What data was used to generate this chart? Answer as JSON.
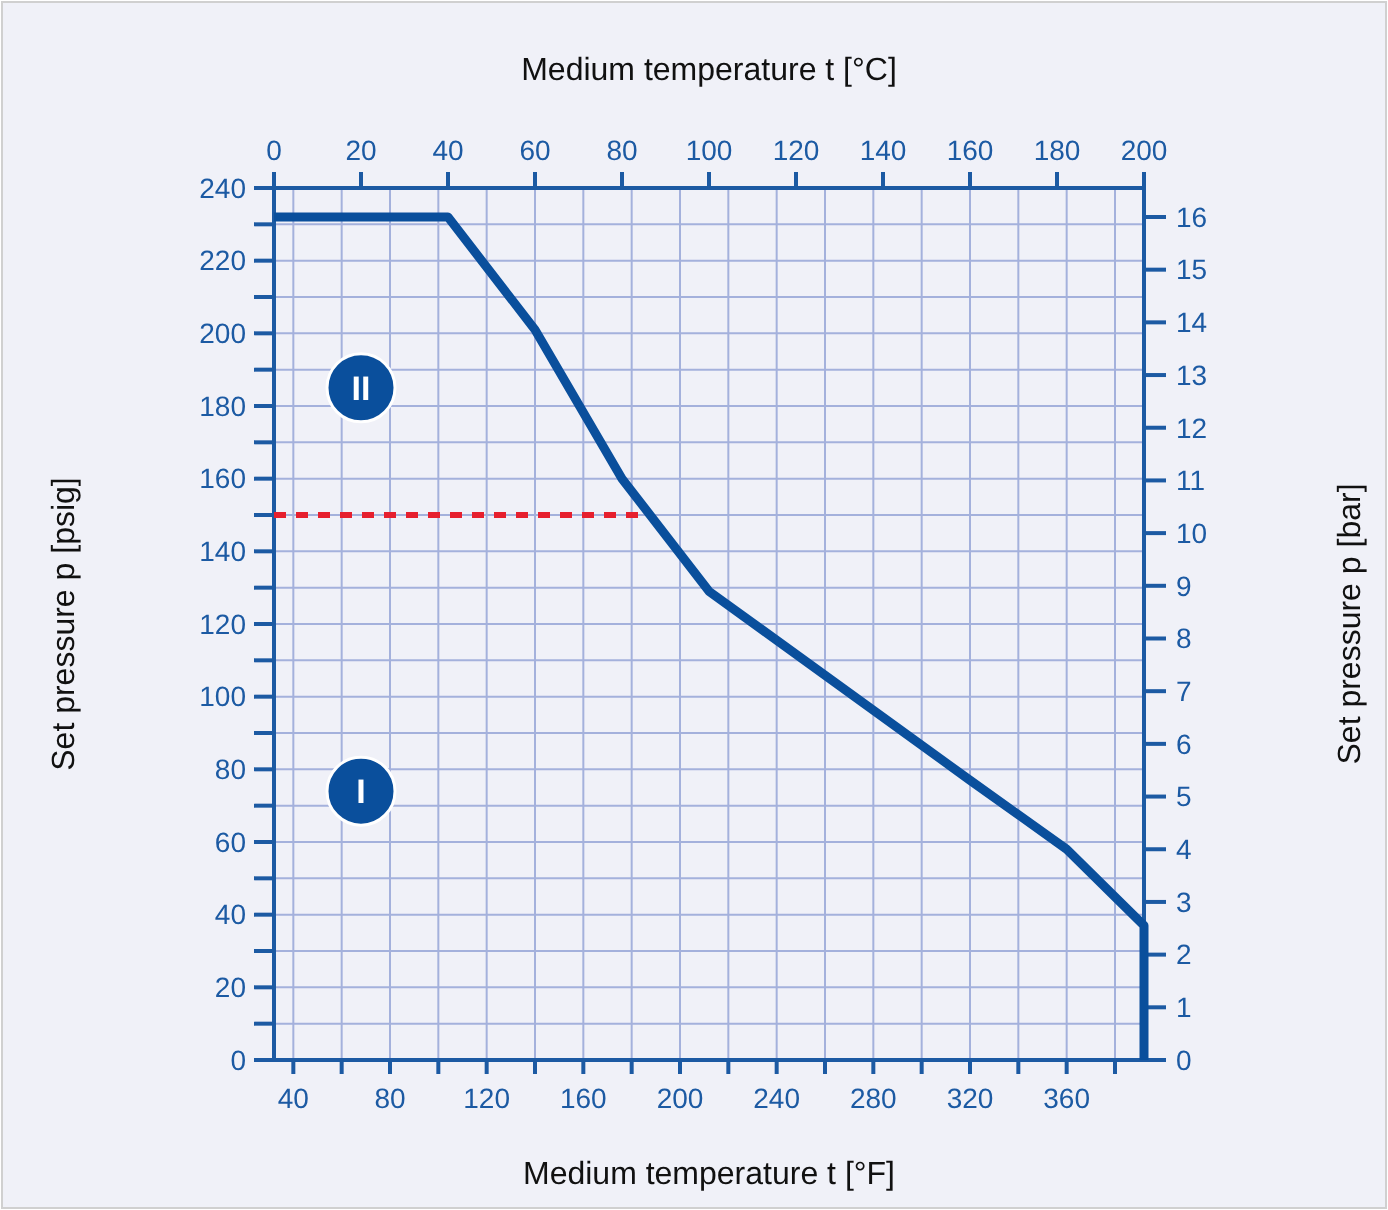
{
  "chart_data": {
    "type": "line",
    "xlabel": "Medium temperature t [°F]",
    "x2label": "Medium temperature t [°C]",
    "ylabel": "Set pressure p [psig]",
    "y2label": "Set pressure p [bar]",
    "xlim": [
      32,
      392
    ],
    "xticks": [
      40,
      {
        "value": 60,
        "label": null
      },
      80,
      {
        "value": 100,
        "label": null
      },
      120,
      {
        "value": 140,
        "label": null
      },
      160,
      {
        "value": 180,
        "label": null
      },
      200,
      {
        "value": 220,
        "label": null
      },
      240,
      {
        "value": 260,
        "label": null
      },
      280,
      {
        "value": 300,
        "label": null
      },
      320,
      {
        "value": 340,
        "label": null
      },
      360,
      {
        "value": 380,
        "label": null
      }
    ],
    "x2lim": [
      0,
      200
    ],
    "x2ticks": [
      0,
      20,
      40,
      60,
      80,
      100,
      120,
      140,
      160,
      180,
      200
    ],
    "ylim": [
      0,
      240
    ],
    "yticks": [
      0,
      {
        "value": 10,
        "label": null
      },
      20,
      {
        "value": 30,
        "label": null
      },
      40,
      {
        "value": 50,
        "label": null
      },
      60,
      {
        "value": 70,
        "label": null
      },
      80,
      {
        "value": 90,
        "label": null
      },
      100,
      {
        "value": 110,
        "label": null
      },
      120,
      {
        "value": 130,
        "label": null
      },
      140,
      {
        "value": 150,
        "label": null
      },
      160,
      {
        "value": 170,
        "label": null
      },
      180,
      {
        "value": 190,
        "label": null
      },
      200,
      {
        "value": 210,
        "label": null
      },
      220,
      {
        "value": 230,
        "label": null
      },
      240
    ],
    "y2lim": [
      0,
      16.55
    ],
    "y2ticks": [
      0,
      1,
      2,
      3,
      4,
      5,
      6,
      7,
      8,
      9,
      10,
      11,
      12,
      13,
      14,
      15,
      16
    ],
    "grid": true,
    "marker": "none",
    "series": [
      {
        "color": "#0a4f9c",
        "x": [
          32,
          104,
          140,
          176,
          212,
          320,
          360,
          392,
          392
        ],
        "values": [
          232,
          232,
          201,
          160,
          129,
          77,
          58,
          37,
          0
        ]
      },
      {
        "color": "#e6202e",
        "line_style": "dashed",
        "x": [
          32,
          185
        ],
        "values": [
          150,
          150
        ]
      }
    ],
    "annotations": [
      {
        "text": "II",
        "x": 68,
        "y": 185
      },
      {
        "text": "I",
        "x": 68,
        "y": 74
      }
    ]
  }
}
